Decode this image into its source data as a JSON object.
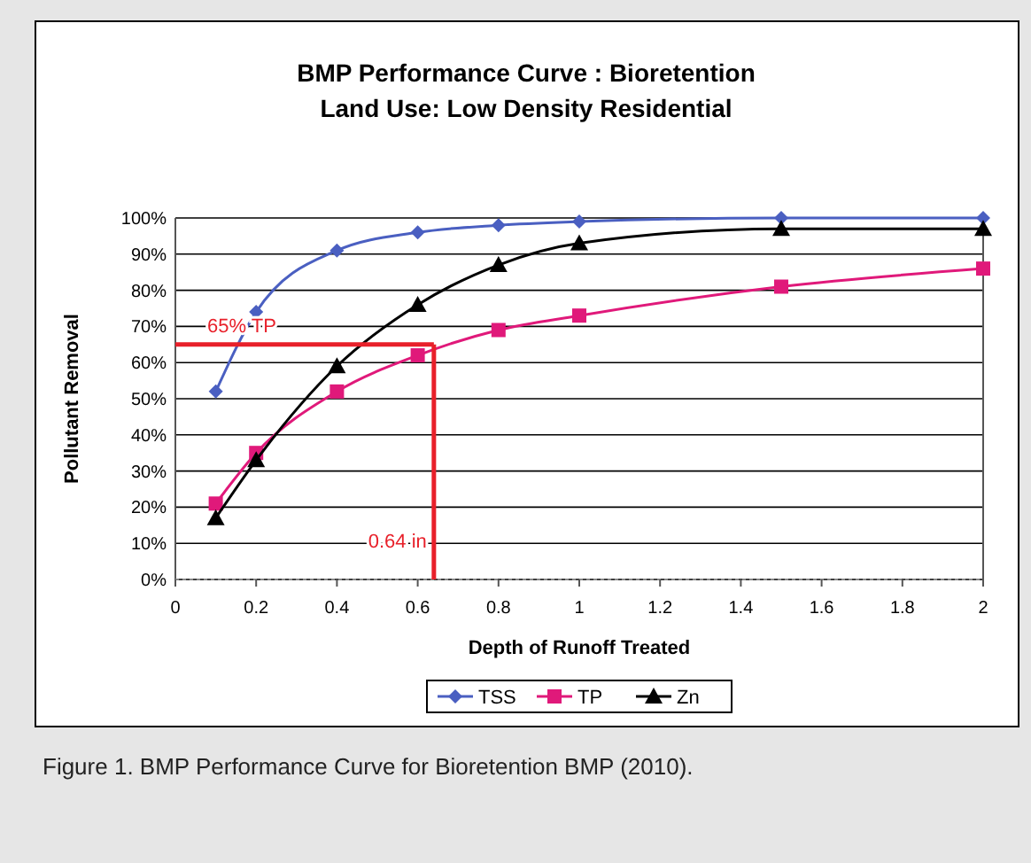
{
  "chart_data": {
    "type": "line",
    "title": "BMP Performance Curve : Bioretention\nLand Use: Low Density Residential",
    "xlabel": "Depth of Runoff Treated",
    "ylabel": "Pollutant Removal",
    "x": [
      0.1,
      0.2,
      0.4,
      0.6,
      0.8,
      1,
      1.5,
      2
    ],
    "series": [
      {
        "name": "TSS",
        "color": "#4a5fc1",
        "marker": "diamond",
        "values": [
          52,
          74,
          91,
          96,
          98,
          99,
          100,
          100
        ]
      },
      {
        "name": "TP",
        "color": "#e0197a",
        "marker": "square",
        "values": [
          21,
          35,
          52,
          62,
          69,
          73,
          81,
          86
        ]
      },
      {
        "name": "Zn",
        "color": "#000000",
        "marker": "triangle",
        "values": [
          17,
          33,
          59,
          76,
          87,
          93,
          97,
          97
        ]
      }
    ],
    "xlim": [
      0,
      2
    ],
    "xticks": [
      0,
      0.2,
      0.4,
      0.6,
      0.8,
      1,
      1.2,
      1.4,
      1.6,
      1.8,
      2
    ],
    "ylim": [
      0,
      100
    ],
    "yticks": [
      {
        "value": 0,
        "label": "0%"
      },
      {
        "value": 10,
        "label": "10%"
      },
      {
        "value": 20,
        "label": "20%"
      },
      {
        "value": 30,
        "label": "30%"
      },
      {
        "value": 40,
        "label": "40%"
      },
      {
        "value": 50,
        "label": "50%"
      },
      {
        "value": 60,
        "label": "60%"
      },
      {
        "value": 70,
        "label": "70%"
      },
      {
        "value": 80,
        "label": "80%"
      },
      {
        "value": 90,
        "label": "90%"
      },
      {
        "value": 100,
        "label": "100%"
      }
    ],
    "grid": "y",
    "legend": "bottom",
    "ref_lines": [
      {
        "axis": "y",
        "value": 65,
        "label": "65% TP",
        "color": "#e8202a"
      },
      {
        "axis": "x",
        "value": 0.64,
        "label": "0.64 in",
        "color": "#e8202a"
      }
    ],
    "annotations": [
      "Figure 1. BMP Performance Curve for Bioretention BMP (2010)."
    ]
  }
}
